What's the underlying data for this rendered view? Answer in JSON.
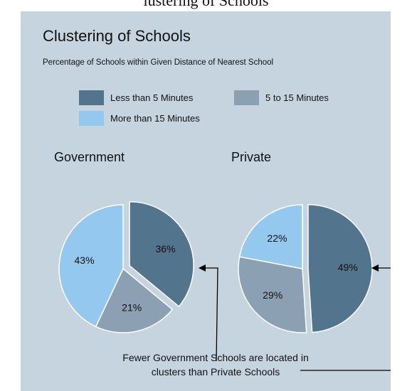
{
  "page_caption_fragment": "lustering of Schools",
  "chart_data": {
    "type": "pie",
    "title": "Clustering of Schools",
    "subtitle": "Percentage of Schools within Given Distance of Nearest School",
    "legend": {
      "placement": "top",
      "entries": [
        {
          "label": "Less than 5 Minutes",
          "color": "#52748c"
        },
        {
          "label": "5 to 15 Minutes",
          "color": "#8ca0b4"
        },
        {
          "label": "More than 15 Minutes",
          "color": "#94c8ee"
        }
      ]
    },
    "charts": [
      {
        "title": "Government",
        "slices": [
          {
            "category": "Less than 5 Minutes",
            "value": 36,
            "label": "36%",
            "exploded": true
          },
          {
            "category": "5 to 15 Minutes",
            "value": 21,
            "label": "21%",
            "exploded": false
          },
          {
            "category": "More than 15 Minutes",
            "value": 43,
            "label": "43%",
            "exploded": false
          }
        ]
      },
      {
        "title": "Private",
        "slices": [
          {
            "category": "Less than 5 Minutes",
            "value": 49,
            "label": "49%",
            "exploded": true
          },
          {
            "category": "5 to 15 Minutes",
            "value": 29,
            "label": "29%",
            "exploded": false
          },
          {
            "category": "More than 15 Minutes",
            "value": 22,
            "label": "22%",
            "exploded": false
          }
        ]
      }
    ],
    "annotation": "Fewer Government Schools are located in clusters than Private Schools",
    "annotation_lines": [
      "Fewer Government Schools are located in",
      "clusters than Private Schools"
    ],
    "colors": {
      "background": "#c6d4e0",
      "outline": "#ffffff",
      "arrow": "#000000"
    }
  }
}
